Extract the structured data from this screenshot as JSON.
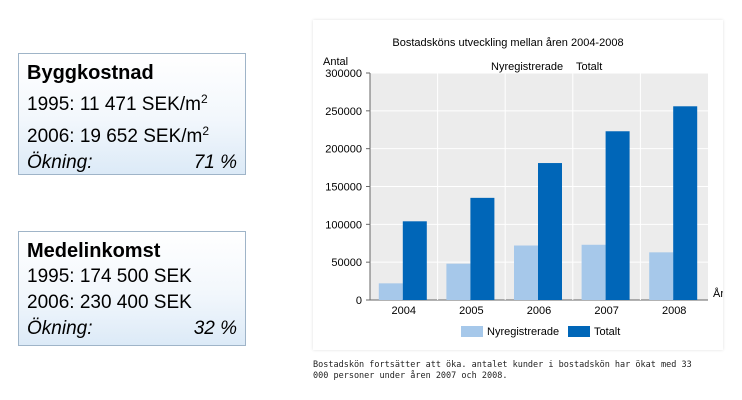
{
  "build_box": {
    "title": "Byggkostnad",
    "line1_prefix": "1995: 11 471 SEK/m",
    "line2_prefix": "2006: 19 652 SEK/m",
    "sup": "2",
    "change_label": "Ökning:",
    "change_value": "71 %"
  },
  "income_box": {
    "title": "Medelinkomst",
    "line1": "1995: 174 500 SEK",
    "line2": "2006: 230 400 SEK",
    "change_label": "Ökning:",
    "change_value": "32 %"
  },
  "caption": {
    "line1": "Bostadskön fortsätter att öka.  antalet kunder i bostadskön har ökat med 33",
    "line2": "000 personer under åren 2007 och 2008."
  },
  "colors": {
    "nyregistrerade": "#a6c8ea",
    "totalt": "#0066b8"
  },
  "chart_data": {
    "type": "bar",
    "title": "Bostadsköns utveckling mellan åren 2004-2008",
    "ylabel": "Antal",
    "xlabel": "År",
    "categories": [
      "2004",
      "2005",
      "2006",
      "2007",
      "2008"
    ],
    "series": [
      {
        "name": "Nyregistrerade",
        "values": [
          22000,
          48000,
          72000,
          73000,
          63000
        ]
      },
      {
        "name": "Totalt",
        "values": [
          104000,
          135000,
          181000,
          223000,
          256000
        ]
      }
    ],
    "ylim": [
      0,
      300000
    ],
    "yticks": [
      0,
      50000,
      100000,
      150000,
      200000,
      250000,
      300000
    ],
    "ytick_labels": [
      "0",
      "50000",
      "100000",
      "150000",
      "200000",
      "250000",
      "300000"
    ],
    "top_legend": [
      "Nyregistrerade",
      "Totalt"
    ],
    "legend_position": "bottom",
    "grid": true
  }
}
